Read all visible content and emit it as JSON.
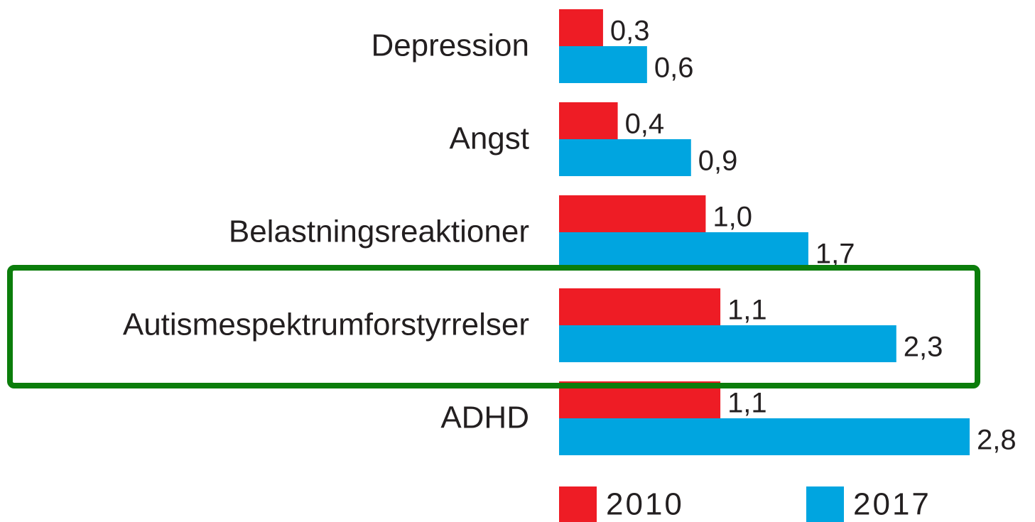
{
  "chart_data": {
    "type": "bar",
    "orientation": "horizontal",
    "categories": [
      "Depression",
      "Angst",
      "Belastningsreaktioner",
      "Autismespektrumforstyrrelser",
      "ADHD"
    ],
    "series": [
      {
        "name": "2010",
        "color": "#ee1c25",
        "values": [
          0.3,
          0.4,
          1.0,
          1.1,
          1.1
        ],
        "value_labels": [
          "0,3",
          "0,4",
          "1,0",
          "1,1",
          "1,1"
        ]
      },
      {
        "name": "2017",
        "color": "#00a5e0",
        "values": [
          0.6,
          0.9,
          1.7,
          2.3,
          2.8
        ],
        "value_labels": [
          "0,6",
          "0,9",
          "1,7",
          "2,3",
          "2,8"
        ]
      }
    ],
    "legend": "bottom"
  }
}
